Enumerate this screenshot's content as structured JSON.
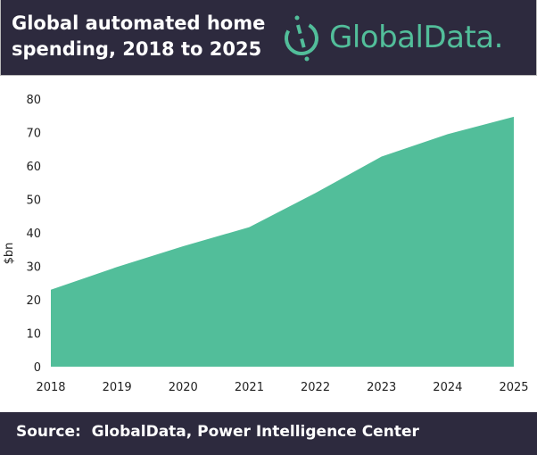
{
  "header": {
    "title": "Global automated home spending, 2018 to 2025",
    "logo_text": "GlobalData."
  },
  "footer": {
    "source": "Source:  GlobalData, Power Intelligence Center"
  },
  "colors": {
    "header_bg": "#2d2a3e",
    "area_fill": "#52be9a"
  },
  "chart_data": {
    "type": "area",
    "title": "Global automated home spending, 2018 to 2025",
    "xlabel": "",
    "ylabel": "$bn",
    "categories": [
      "2018",
      "2019",
      "2020",
      "2021",
      "2022",
      "2023",
      "2024",
      "2025"
    ],
    "values": [
      23,
      29.8,
      36,
      41.7,
      51.9,
      62.8,
      69.5,
      74.7
    ],
    "ylim": [
      0,
      80
    ],
    "yticks": [
      "0",
      "10",
      "20",
      "30",
      "40",
      "50",
      "60",
      "70",
      "80"
    ],
    "grid": false,
    "legend": "none"
  }
}
